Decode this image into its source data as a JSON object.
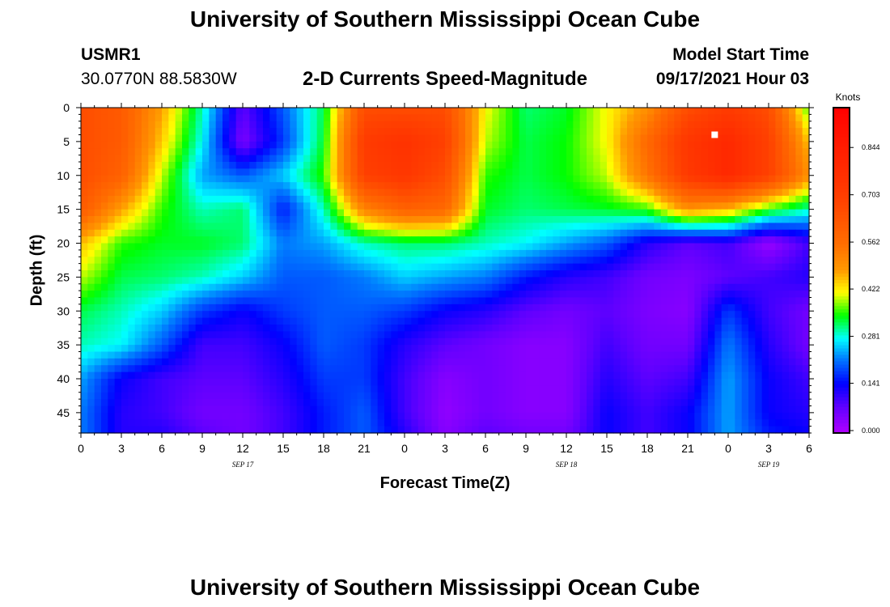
{
  "header": {
    "title_top": "University of Southern Mississippi Ocean Cube",
    "station_id": "USMR1",
    "coords": "30.0770N  88.5830W",
    "subtitle": "2-D Currents Speed-Magnitude",
    "model_label": "Model Start Time",
    "model_time": "09/17/2021 Hour 03",
    "title_bottom": "University of Southern Mississippi Ocean Cube"
  },
  "chart_data": {
    "type": "heatmap",
    "title": "2-D Currents Speed-Magnitude",
    "xlabel": "Forecast Time(Z)",
    "ylabel": "Depth (ft)",
    "x_range_hours": [
      0,
      54
    ],
    "y_range_ft": [
      0,
      48
    ],
    "x_ticks": [
      {
        "h": 0,
        "label": "0"
      },
      {
        "h": 3,
        "label": "3"
      },
      {
        "h": 6,
        "label": "6"
      },
      {
        "h": 9,
        "label": "9"
      },
      {
        "h": 12,
        "label": "12"
      },
      {
        "h": 15,
        "label": "15"
      },
      {
        "h": 18,
        "label": "18"
      },
      {
        "h": 21,
        "label": "21"
      },
      {
        "h": 24,
        "label": "0"
      },
      {
        "h": 27,
        "label": "3"
      },
      {
        "h": 30,
        "label": "6"
      },
      {
        "h": 33,
        "label": "9"
      },
      {
        "h": 36,
        "label": "12"
      },
      {
        "h": 39,
        "label": "15"
      },
      {
        "h": 42,
        "label": "18"
      },
      {
        "h": 45,
        "label": "21"
      },
      {
        "h": 48,
        "label": "0"
      },
      {
        "h": 51,
        "label": "3"
      },
      {
        "h": 54,
        "label": "6"
      }
    ],
    "date_labels": [
      {
        "h": 12,
        "label": "SEP 17"
      },
      {
        "h": 36,
        "label": "SEP 18"
      },
      {
        "h": 51,
        "label": "SEP 19"
      }
    ],
    "y_ticks": [
      0,
      5,
      10,
      15,
      20,
      25,
      30,
      35,
      40,
      45
    ],
    "colorbar": {
      "unit": "Knots",
      "range": [
        0,
        0.97
      ],
      "tick_values": [
        0.0,
        0.141,
        0.281,
        0.422,
        0.562,
        0.703,
        0.844
      ],
      "tick_labels": [
        "0.000",
        "0.141",
        "0.281",
        "0.422",
        "0.562",
        "0.703",
        "0.844"
      ]
    },
    "grid_hours": [
      0,
      3,
      6,
      9,
      12,
      15,
      18,
      21,
      24,
      27,
      30,
      33,
      36,
      39,
      42,
      45,
      48,
      51,
      54
    ],
    "grid_depths_ft": [
      0,
      5,
      10,
      15,
      20,
      25,
      30,
      35,
      40,
      45,
      48
    ],
    "values_knots": [
      [
        0.66,
        0.62,
        0.48,
        0.3,
        0.08,
        0.2,
        0.33,
        0.66,
        0.66,
        0.66,
        0.42,
        0.32,
        0.34,
        0.42,
        0.5,
        0.66,
        0.72,
        0.66,
        0.36
      ],
      [
        0.66,
        0.62,
        0.45,
        0.28,
        0.05,
        0.18,
        0.34,
        0.72,
        0.76,
        0.7,
        0.4,
        0.33,
        0.35,
        0.42,
        0.58,
        0.74,
        0.8,
        0.7,
        0.45
      ],
      [
        0.66,
        0.6,
        0.4,
        0.24,
        0.2,
        0.26,
        0.36,
        0.7,
        0.74,
        0.66,
        0.36,
        0.33,
        0.35,
        0.4,
        0.55,
        0.73,
        0.8,
        0.7,
        0.5
      ],
      [
        0.62,
        0.48,
        0.36,
        0.3,
        0.32,
        0.16,
        0.3,
        0.52,
        0.6,
        0.58,
        0.34,
        0.32,
        0.33,
        0.34,
        0.36,
        0.5,
        0.46,
        0.36,
        0.3
      ],
      [
        0.46,
        0.36,
        0.34,
        0.34,
        0.32,
        0.22,
        0.24,
        0.3,
        0.32,
        0.32,
        0.3,
        0.28,
        0.24,
        0.2,
        0.12,
        0.08,
        0.1,
        0.02,
        0.1
      ],
      [
        0.4,
        0.33,
        0.32,
        0.3,
        0.26,
        0.2,
        0.2,
        0.22,
        0.26,
        0.24,
        0.22,
        0.16,
        0.12,
        0.1,
        0.06,
        0.05,
        0.08,
        0.1,
        0.12
      ],
      [
        0.33,
        0.3,
        0.26,
        0.18,
        0.14,
        0.18,
        0.2,
        0.2,
        0.18,
        0.14,
        0.12,
        0.08,
        0.06,
        0.08,
        0.05,
        0.04,
        0.18,
        0.1,
        0.06
      ],
      [
        0.3,
        0.28,
        0.2,
        0.1,
        0.1,
        0.14,
        0.2,
        0.18,
        0.12,
        0.08,
        0.06,
        0.04,
        0.04,
        0.1,
        0.06,
        0.06,
        0.22,
        0.12,
        0.06
      ],
      [
        0.24,
        0.14,
        0.1,
        0.08,
        0.08,
        0.12,
        0.18,
        0.18,
        0.1,
        0.04,
        0.06,
        0.04,
        0.04,
        0.12,
        0.08,
        0.1,
        0.24,
        0.14,
        0.1
      ],
      [
        0.22,
        0.12,
        0.1,
        0.06,
        0.06,
        0.1,
        0.16,
        0.2,
        0.1,
        0.03,
        0.06,
        0.04,
        0.04,
        0.14,
        0.1,
        0.14,
        0.24,
        0.14,
        0.12
      ],
      [
        0.22,
        0.12,
        0.12,
        0.08,
        0.06,
        0.1,
        0.16,
        0.2,
        0.12,
        0.04,
        0.08,
        0.06,
        0.06,
        0.14,
        0.1,
        0.14,
        0.24,
        0.16,
        0.14
      ]
    ],
    "marker": {
      "h": 47,
      "depth_ft": 4
    }
  }
}
